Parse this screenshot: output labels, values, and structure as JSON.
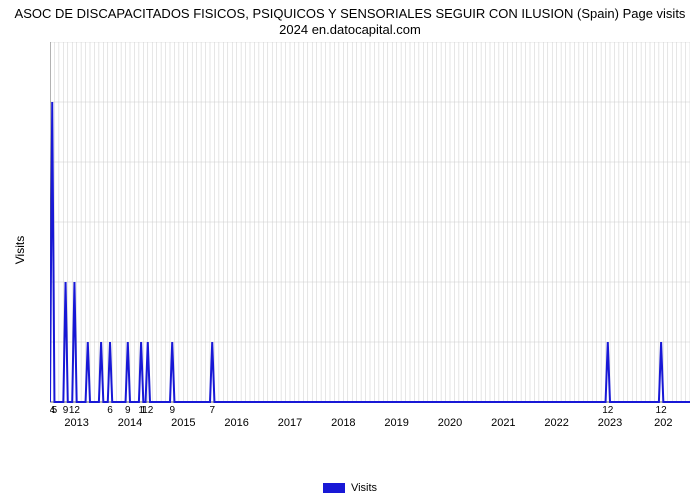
{
  "chart": {
    "type": "line",
    "title": "ASOC DE DISCAPACITADOS FISICOS, PSIQUICOS Y SENSORIALES SEGUIR CON ILUSION (Spain) Page visits 2024 en.datocapital.com",
    "title_fontsize": 13,
    "xlabel": "",
    "ylabel": "Visits",
    "ylabel_fontsize": 12,
    "background_color": "#ffffff",
    "line_color": "#1818d6",
    "line_width": 2,
    "grid_color": "#cccccc",
    "axis_color": "#666666",
    "ylim": [
      0,
      6
    ],
    "yticks": [
      0,
      1,
      2,
      3,
      4,
      5,
      6
    ],
    "xlim": [
      0,
      144
    ],
    "year_labels": [
      "2013",
      "2014",
      "2015",
      "2016",
      "2017",
      "2018",
      "2019",
      "2020",
      "2021",
      "2022",
      "2023",
      "202"
    ],
    "year_positions": [
      6,
      18,
      30,
      42,
      54,
      66,
      78,
      90,
      102,
      114,
      126,
      138
    ],
    "legend_label": "Visits",
    "series": [
      {
        "x": 0,
        "y": 0
      },
      {
        "x": 0.5,
        "y": 5
      },
      {
        "x": 1,
        "y": 0
      },
      {
        "x": 3,
        "y": 0
      },
      {
        "x": 3.5,
        "y": 2
      },
      {
        "x": 4,
        "y": 0
      },
      {
        "x": 5,
        "y": 0
      },
      {
        "x": 5.5,
        "y": 2
      },
      {
        "x": 6,
        "y": 0
      },
      {
        "x": 8,
        "y": 0
      },
      {
        "x": 8.5,
        "y": 1
      },
      {
        "x": 9,
        "y": 0
      },
      {
        "x": 11,
        "y": 0
      },
      {
        "x": 11.5,
        "y": 1
      },
      {
        "x": 12,
        "y": 0
      },
      {
        "x": 13,
        "y": 0
      },
      {
        "x": 13.5,
        "y": 1
      },
      {
        "x": 14,
        "y": 0
      },
      {
        "x": 17,
        "y": 0
      },
      {
        "x": 17.5,
        "y": 1
      },
      {
        "x": 18,
        "y": 0
      },
      {
        "x": 20,
        "y": 0
      },
      {
        "x": 20.5,
        "y": 1
      },
      {
        "x": 21,
        "y": 0
      },
      {
        "x": 21.5,
        "y": 0
      },
      {
        "x": 22,
        "y": 1
      },
      {
        "x": 22.5,
        "y": 0
      },
      {
        "x": 27,
        "y": 0
      },
      {
        "x": 27.5,
        "y": 1
      },
      {
        "x": 28,
        "y": 0
      },
      {
        "x": 36,
        "y": 0
      },
      {
        "x": 36.5,
        "y": 1
      },
      {
        "x": 37,
        "y": 0
      },
      {
        "x": 125,
        "y": 0
      },
      {
        "x": 125.5,
        "y": 1
      },
      {
        "x": 126,
        "y": 0
      },
      {
        "x": 137,
        "y": 0
      },
      {
        "x": 137.5,
        "y": 1
      },
      {
        "x": 138,
        "y": 0
      },
      {
        "x": 144,
        "y": 0
      }
    ],
    "data_point_labels": [
      {
        "x": 0.5,
        "label": "4"
      },
      {
        "x": 1.0,
        "label": "5"
      },
      {
        "x": 3.5,
        "label": "9"
      },
      {
        "x": 5.5,
        "label": "12"
      },
      {
        "x": 13.5,
        "label": "6"
      },
      {
        "x": 17.5,
        "label": "9"
      },
      {
        "x": 20.5,
        "label": "1"
      },
      {
        "x": 21.0,
        "label": "1"
      },
      {
        "x": 22.0,
        "label": "12"
      },
      {
        "x": 27.5,
        "label": "9"
      },
      {
        "x": 36.5,
        "label": "7"
      },
      {
        "x": 125.5,
        "label": "12"
      },
      {
        "x": 137.5,
        "label": "12"
      }
    ]
  }
}
